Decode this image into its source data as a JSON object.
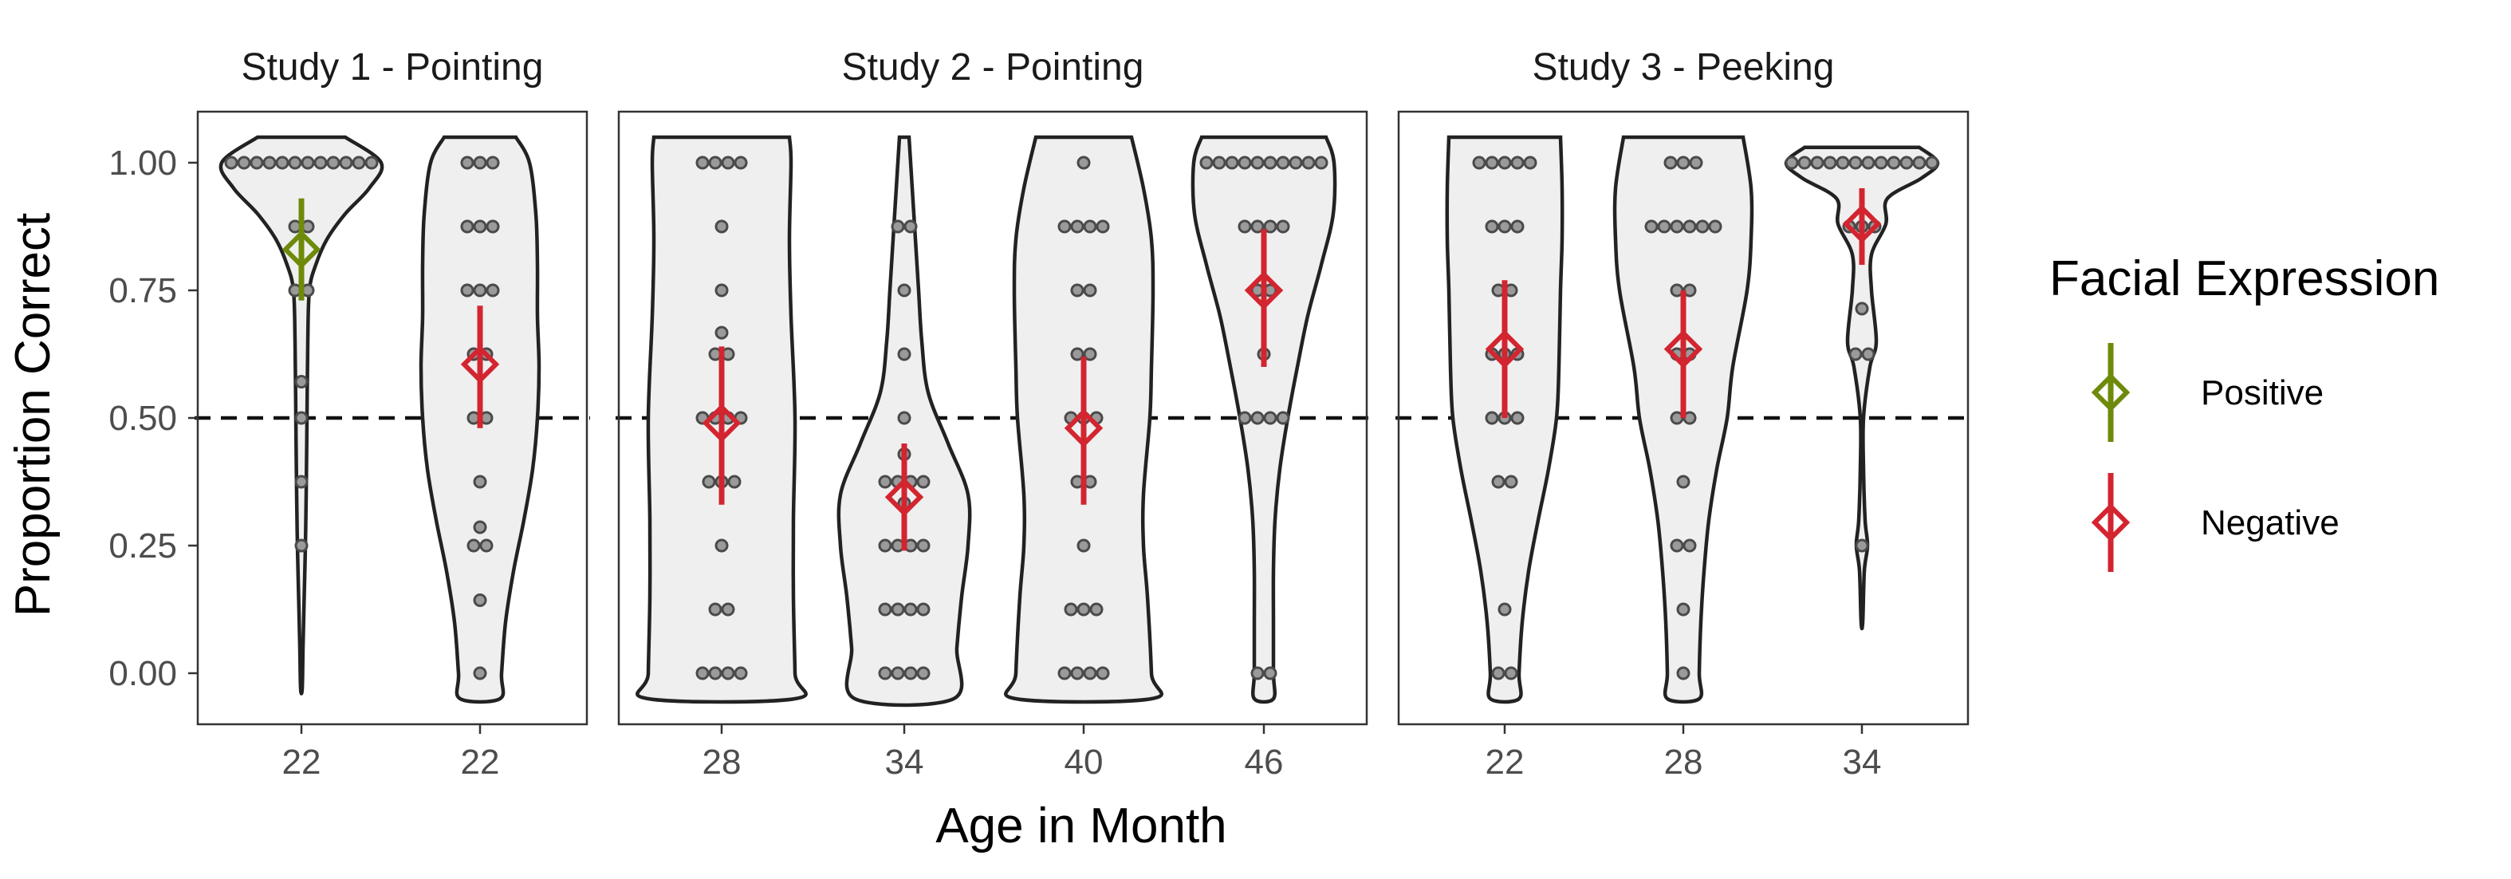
{
  "chart_data": {
    "type": "violin",
    "ylabel": "Proportion Correct",
    "xlabel": "Age in Month",
    "ylim": [
      -0.1,
      1.1
    ],
    "yticks": [
      0,
      0.25,
      0.5,
      0.75,
      1.0
    ],
    "ytick_labels": [
      "0.00",
      "0.25",
      "0.50",
      "0.75",
      "1.00"
    ],
    "reference_line": 0.5,
    "legend": {
      "title": "Facial Expression",
      "placement": "right",
      "entries": [
        {
          "label": "Positive",
          "color": "#6e8a0a"
        },
        {
          "label": "Negative",
          "color": "#d32530"
        }
      ]
    },
    "panels": [
      {
        "title": "Study 1 - Pointing",
        "groups": [
          {
            "age": "22",
            "expression": "Positive",
            "mean": 0.83,
            "ci": [
              0.73,
              0.93
            ],
            "points": [
              1,
              1,
              1,
              1,
              1,
              1,
              1,
              1,
              1,
              1,
              1,
              1,
              0.875,
              0.875,
              0.75,
              0.75,
              0.571,
              0.5,
              0.375,
              0.25
            ],
            "violin_range": [
              -0.03,
              1.05
            ],
            "violin_profile": [
              [
                1.05,
                0.55
              ],
              [
                1.0,
                1.0
              ],
              [
                0.95,
                0.85
              ],
              [
                0.9,
                0.55
              ],
              [
                0.85,
                0.32
              ],
              [
                0.8,
                0.18
              ],
              [
                0.75,
                0.1
              ],
              [
                0.65,
                0.08
              ],
              [
                0.5,
                0.07
              ],
              [
                0.35,
                0.06
              ],
              [
                0.25,
                0.05
              ],
              [
                0.15,
                0.035
              ],
              [
                0.05,
                0.02
              ],
              [
                -0.03,
                0.01
              ]
            ]
          },
          {
            "age": "22",
            "expression": "Negative",
            "mean": 0.605,
            "ci": [
              0.48,
              0.72
            ],
            "points": [
              1,
              1,
              1,
              0.875,
              0.875,
              0.875,
              0.75,
              0.75,
              0.75,
              0.625,
              0.625,
              0.5,
              0.5,
              0.375,
              0.286,
              0.25,
              0.25,
              0.143,
              0
            ],
            "violin_range": [
              -0.05,
              1.05
            ],
            "violin_profile": [
              [
                1.05,
                0.45
              ],
              [
                1.0,
                0.62
              ],
              [
                0.9,
                0.7
              ],
              [
                0.8,
                0.72
              ],
              [
                0.7,
                0.72
              ],
              [
                0.6,
                0.74
              ],
              [
                0.5,
                0.72
              ],
              [
                0.4,
                0.66
              ],
              [
                0.3,
                0.55
              ],
              [
                0.2,
                0.42
              ],
              [
                0.1,
                0.32
              ],
              [
                0.0,
                0.27
              ],
              [
                -0.05,
                0.25
              ]
            ]
          }
        ]
      },
      {
        "title": "Study 2 - Pointing",
        "groups": [
          {
            "age": "28",
            "expression": "Negative",
            "mean": 0.49,
            "ci": [
              0.33,
              0.64
            ],
            "points": [
              1,
              1,
              1,
              1,
              0.875,
              0.75,
              0.667,
              0.625,
              0.625,
              0.5,
              0.5,
              0.5,
              0.5,
              0.375,
              0.375,
              0.375,
              0.25,
              0.125,
              0.125,
              0,
              0,
              0,
              0
            ],
            "violin_range": [
              -0.05,
              1.05
            ],
            "violin_profile": [
              [
                1.05,
                0.85
              ],
              [
                1.0,
                0.87
              ],
              [
                0.85,
                0.85
              ],
              [
                0.7,
                0.87
              ],
              [
                0.5,
                0.92
              ],
              [
                0.3,
                0.9
              ],
              [
                0.15,
                0.9
              ],
              [
                0.0,
                0.92
              ],
              [
                -0.05,
                0.92
              ]
            ]
          },
          {
            "age": "34",
            "expression": "Negative",
            "mean": 0.345,
            "ci": [
              0.24,
              0.45
            ],
            "points": [
              0.875,
              0.875,
              0.75,
              0.625,
              0.5,
              0.429,
              0.375,
              0.375,
              0.375,
              0.375,
              0.333,
              0.25,
              0.25,
              0.25,
              0.25,
              0.125,
              0.125,
              0.125,
              0.125,
              0,
              0,
              0,
              0
            ],
            "violin_range": [
              -0.05,
              1.05
            ],
            "violin_profile": [
              [
                1.05,
                0.06
              ],
              [
                0.95,
                0.1
              ],
              [
                0.85,
                0.14
              ],
              [
                0.75,
                0.18
              ],
              [
                0.65,
                0.22
              ],
              [
                0.55,
                0.3
              ],
              [
                0.45,
                0.55
              ],
              [
                0.35,
                0.8
              ],
              [
                0.25,
                0.8
              ],
              [
                0.15,
                0.72
              ],
              [
                0.05,
                0.66
              ],
              [
                -0.05,
                0.62
              ]
            ]
          },
          {
            "age": "40",
            "expression": "Negative",
            "mean": 0.48,
            "ci": [
              0.33,
              0.62
            ],
            "points": [
              1,
              0.875,
              0.875,
              0.875,
              0.875,
              0.75,
              0.75,
              0.625,
              0.625,
              0.5,
              0.5,
              0.5,
              0.375,
              0.375,
              0.25,
              0.125,
              0.125,
              0.125,
              0,
              0,
              0,
              0
            ],
            "violin_range": [
              -0.05,
              1.05
            ],
            "violin_profile": [
              [
                1.05,
                0.6
              ],
              [
                0.95,
                0.75
              ],
              [
                0.85,
                0.85
              ],
              [
                0.75,
                0.87
              ],
              [
                0.6,
                0.85
              ],
              [
                0.5,
                0.83
              ],
              [
                0.35,
                0.75
              ],
              [
                0.25,
                0.75
              ],
              [
                0.15,
                0.8
              ],
              [
                0.0,
                0.85
              ],
              [
                -0.05,
                0.85
              ]
            ]
          },
          {
            "age": "46",
            "expression": "Negative",
            "mean": 0.75,
            "ci": [
              0.6,
              0.87
            ],
            "points": [
              1,
              1,
              1,
              1,
              1,
              1,
              1,
              1,
              1,
              1,
              0.875,
              0.875,
              0.875,
              0.875,
              0.75,
              0.75,
              0.625,
              0.5,
              0.5,
              0.5,
              0.5,
              0,
              0
            ],
            "violin_range": [
              -0.05,
              1.05
            ],
            "violin_profile": [
              [
                1.05,
                0.78
              ],
              [
                1.0,
                0.88
              ],
              [
                0.9,
                0.87
              ],
              [
                0.8,
                0.72
              ],
              [
                0.7,
                0.55
              ],
              [
                0.6,
                0.42
              ],
              [
                0.5,
                0.3
              ],
              [
                0.4,
                0.2
              ],
              [
                0.3,
                0.14
              ],
              [
                0.2,
                0.12
              ],
              [
                0.1,
                0.12
              ],
              [
                0.0,
                0.12
              ],
              [
                -0.05,
                0.12
              ]
            ]
          }
        ]
      },
      {
        "title": "Study 3 - Peeking",
        "groups": [
          {
            "age": "22",
            "expression": "Negative",
            "mean": 0.635,
            "ci": [
              0.5,
              0.77
            ],
            "points": [
              1,
              1,
              1,
              1,
              1,
              0.875,
              0.875,
              0.875,
              0.75,
              0.75,
              0.625,
              0.625,
              0.625,
              0.5,
              0.5,
              0.5,
              0.375,
              0.375,
              0.125,
              0,
              0
            ],
            "violin_range": [
              -0.05,
              1.05
            ],
            "violin_profile": [
              [
                1.05,
                0.7
              ],
              [
                0.95,
                0.72
              ],
              [
                0.85,
                0.72
              ],
              [
                0.75,
                0.7
              ],
              [
                0.6,
                0.68
              ],
              [
                0.5,
                0.65
              ],
              [
                0.4,
                0.55
              ],
              [
                0.3,
                0.42
              ],
              [
                0.2,
                0.3
              ],
              [
                0.1,
                0.22
              ],
              [
                0.0,
                0.18
              ],
              [
                -0.05,
                0.18
              ]
            ]
          },
          {
            "age": "28",
            "expression": "Negative",
            "mean": 0.635,
            "ci": [
              0.5,
              0.75
            ],
            "points": [
              1,
              1,
              1,
              0.875,
              0.875,
              0.875,
              0.875,
              0.875,
              0.875,
              0.75,
              0.75,
              0.625,
              0.625,
              0.5,
              0.5,
              0.375,
              0.25,
              0.25,
              0.125,
              0
            ],
            "violin_range": [
              -0.05,
              1.05
            ],
            "violin_profile": [
              [
                1.05,
                0.75
              ],
              [
                0.95,
                0.85
              ],
              [
                0.85,
                0.85
              ],
              [
                0.75,
                0.8
              ],
              [
                0.6,
                0.62
              ],
              [
                0.5,
                0.55
              ],
              [
                0.4,
                0.42
              ],
              [
                0.3,
                0.32
              ],
              [
                0.2,
                0.26
              ],
              [
                0.1,
                0.22
              ],
              [
                0.0,
                0.2
              ],
              [
                -0.05,
                0.2
              ]
            ]
          },
          {
            "age": "34",
            "expression": "Negative",
            "mean": 0.88,
            "ci": [
              0.8,
              0.95
            ],
            "points": [
              1,
              1,
              1,
              1,
              1,
              1,
              1,
              1,
              1,
              1,
              1,
              1,
              0.875,
              0.875,
              0.875,
              0.714,
              0.625,
              0.625,
              0.25
            ],
            "violin_range": [
              0.1,
              1.03
            ],
            "violin_profile": [
              [
                1.03,
                0.72
              ],
              [
                1.0,
                0.95
              ],
              [
                0.97,
                0.75
              ],
              [
                0.93,
                0.32
              ],
              [
                0.88,
                0.3
              ],
              [
                0.82,
                0.12
              ],
              [
                0.75,
                0.12
              ],
              [
                0.65,
                0.18
              ],
              [
                0.6,
                0.1
              ],
              [
                0.5,
                0.02
              ],
              [
                0.4,
                0.02
              ],
              [
                0.3,
                0.04
              ],
              [
                0.25,
                0.07
              ],
              [
                0.2,
                0.03
              ],
              [
                0.1,
                0.01
              ]
            ]
          }
        ]
      }
    ]
  }
}
